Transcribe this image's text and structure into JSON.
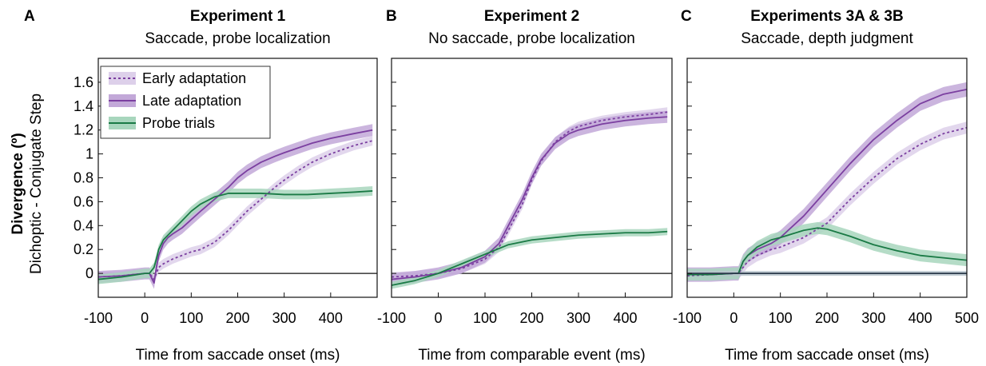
{
  "figure": {
    "ylabel_bold": "Divergence (º)",
    "ylabel": "Dichoptic - Conjugate Step"
  },
  "legend": {
    "items": [
      {
        "label": "Early adaptation",
        "color": "#7b3fa0",
        "style": "dotted",
        "band": "#ddd0ea"
      },
      {
        "label": "Late adaptation",
        "color": "#7b3fa0",
        "style": "solid",
        "band": "#c2a8d8"
      },
      {
        "label": "Probe trials",
        "color": "#1a7a45",
        "style": "solid",
        "band": "#a8d6bd"
      }
    ],
    "placement": "top-left of panel A"
  },
  "chart_data": [
    {
      "type": "line",
      "letter": "A",
      "title": "Experiment 1",
      "subtitle": "Saccade, probe localization",
      "xlabel": "Time from saccade onset (ms)",
      "xlim": [
        -100,
        500
      ],
      "ylim": [
        -0.2,
        1.8
      ],
      "xticks": [
        "-100",
        "0",
        "100",
        "200",
        "300",
        "400"
      ],
      "yticks": [
        "0",
        "0.2",
        "0.4",
        "0.6",
        "0.8",
        "1",
        "1.2",
        "1.4",
        "1.6"
      ],
      "reference_line": 0,
      "series": [
        {
          "name": "Early adaptation",
          "color": "#7b3fa0",
          "dash": "3,3",
          "band": "#ddd0ea",
          "band_width": 0.04,
          "x": [
            -100,
            -50,
            0,
            10,
            20,
            25,
            30,
            40,
            50,
            60,
            80,
            100,
            120,
            150,
            180,
            200,
            220,
            250,
            280,
            300,
            330,
            360,
            400,
            450,
            490
          ],
          "y": [
            -0.03,
            -0.02,
            0.0,
            0.0,
            -0.05,
            0.0,
            0.05,
            0.08,
            0.1,
            0.12,
            0.15,
            0.18,
            0.2,
            0.26,
            0.36,
            0.44,
            0.52,
            0.62,
            0.72,
            0.78,
            0.86,
            0.93,
            1.0,
            1.07,
            1.11
          ]
        },
        {
          "name": "Late adaptation",
          "color": "#7b3fa0",
          "dash": "",
          "band": "#c2a8d8",
          "band_width": 0.05,
          "x": [
            -100,
            -50,
            0,
            10,
            20,
            25,
            30,
            40,
            50,
            60,
            80,
            100,
            120,
            150,
            180,
            200,
            220,
            250,
            280,
            300,
            330,
            360,
            400,
            450,
            490
          ],
          "y": [
            -0.03,
            -0.02,
            0.0,
            0.0,
            -0.08,
            0.05,
            0.15,
            0.25,
            0.3,
            0.33,
            0.38,
            0.45,
            0.52,
            0.62,
            0.72,
            0.8,
            0.86,
            0.93,
            0.98,
            1.01,
            1.05,
            1.09,
            1.13,
            1.17,
            1.2
          ]
        },
        {
          "name": "Probe trials",
          "color": "#1a7a45",
          "dash": "",
          "band": "#a8d6bd",
          "band_width": 0.04,
          "x": [
            -100,
            -50,
            0,
            10,
            20,
            25,
            30,
            40,
            50,
            60,
            80,
            100,
            120,
            150,
            180,
            200,
            250,
            300,
            350,
            400,
            450,
            490
          ],
          "y": [
            -0.05,
            -0.03,
            0.0,
            0.0,
            0.05,
            0.12,
            0.2,
            0.28,
            0.32,
            0.36,
            0.44,
            0.52,
            0.58,
            0.64,
            0.67,
            0.67,
            0.67,
            0.66,
            0.66,
            0.67,
            0.68,
            0.69
          ]
        }
      ]
    },
    {
      "type": "line",
      "letter": "B",
      "title": "Experiment 2",
      "subtitle": "No saccade, probe localization",
      "xlabel": "Time from comparable event (ms)",
      "xlim": [
        -100,
        500
      ],
      "ylim": [
        -0.2,
        1.8
      ],
      "xticks": [
        "-100",
        "0",
        "100",
        "200",
        "300",
        "400"
      ],
      "yticks": [],
      "reference_line": 0,
      "series": [
        {
          "name": "Early adaptation",
          "color": "#7b3fa0",
          "dash": "3,3",
          "band": "#ddd0ea",
          "band_width": 0.04,
          "x": [
            -100,
            -50,
            0,
            50,
            100,
            130,
            150,
            180,
            200,
            220,
            250,
            280,
            300,
            350,
            400,
            450,
            490
          ],
          "y": [
            -0.03,
            -0.02,
            0.0,
            0.04,
            0.12,
            0.22,
            0.36,
            0.58,
            0.78,
            0.94,
            1.1,
            1.19,
            1.23,
            1.28,
            1.31,
            1.33,
            1.35
          ]
        },
        {
          "name": "Late adaptation",
          "color": "#7b3fa0",
          "dash": "",
          "band": "#c2a8d8",
          "band_width": 0.05,
          "x": [
            -100,
            -50,
            0,
            50,
            100,
            130,
            150,
            180,
            200,
            220,
            250,
            280,
            300,
            350,
            400,
            450,
            490
          ],
          "y": [
            -0.05,
            -0.03,
            0.0,
            0.05,
            0.14,
            0.25,
            0.4,
            0.62,
            0.8,
            0.95,
            1.09,
            1.17,
            1.2,
            1.25,
            1.28,
            1.3,
            1.31
          ]
        },
        {
          "name": "Probe trials",
          "color": "#1a7a45",
          "dash": "",
          "band": "#a8d6bd",
          "band_width": 0.03,
          "x": [
            -100,
            -50,
            0,
            50,
            100,
            150,
            200,
            250,
            300,
            350,
            400,
            450,
            490
          ],
          "y": [
            -0.1,
            -0.06,
            0.0,
            0.08,
            0.16,
            0.24,
            0.28,
            0.3,
            0.32,
            0.33,
            0.34,
            0.34,
            0.35
          ]
        }
      ]
    },
    {
      "type": "line",
      "letter": "C",
      "title": "Experiments 3A & 3B",
      "subtitle": "Saccade, depth judgment",
      "xlabel": "Time from saccade onset (ms)",
      "xlim": [
        -100,
        500
      ],
      "ylim": [
        -0.2,
        1.8
      ],
      "xticks": [
        "-100",
        "0",
        "100",
        "200",
        "300",
        "400",
        "500"
      ],
      "yticks": [],
      "reference_line": 0,
      "series": [
        {
          "name": "Early adaptation",
          "color": "#7b3fa0",
          "dash": "3,3",
          "band": "#ddd0ea",
          "band_width": 0.05,
          "x": [
            -100,
            -50,
            0,
            10,
            20,
            30,
            50,
            80,
            100,
            150,
            200,
            250,
            300,
            350,
            400,
            450,
            500
          ],
          "y": [
            -0.02,
            -0.01,
            0.0,
            0.0,
            0.05,
            0.1,
            0.15,
            0.2,
            0.22,
            0.3,
            0.42,
            0.62,
            0.8,
            0.96,
            1.08,
            1.17,
            1.22
          ]
        },
        {
          "name": "Late adaptation",
          "color": "#7b3fa0",
          "dash": "",
          "band": "#c2a8d8",
          "band_width": 0.06,
          "x": [
            -100,
            -50,
            0,
            10,
            20,
            30,
            50,
            80,
            100,
            150,
            200,
            250,
            300,
            350,
            400,
            450,
            500
          ],
          "y": [
            -0.01,
            -0.01,
            0.0,
            0.0,
            0.1,
            0.15,
            0.2,
            0.25,
            0.3,
            0.48,
            0.7,
            0.92,
            1.12,
            1.28,
            1.42,
            1.5,
            1.54
          ]
        },
        {
          "name": "Probe trials",
          "color": "#1a7a45",
          "dash": "",
          "band": "#a8d6bd",
          "band_width": 0.05,
          "x": [
            -100,
            -50,
            0,
            10,
            20,
            30,
            50,
            80,
            100,
            150,
            180,
            200,
            250,
            300,
            350,
            400,
            450,
            500
          ],
          "y": [
            -0.01,
            -0.01,
            0.0,
            0.0,
            0.1,
            0.15,
            0.22,
            0.28,
            0.3,
            0.36,
            0.38,
            0.37,
            0.31,
            0.24,
            0.19,
            0.15,
            0.13,
            0.11
          ]
        },
        {
          "name": "Conjugate step",
          "color": "#2b3a4a",
          "dash": "",
          "band": "#b8c4cc",
          "band_width": 0.02,
          "x": [
            -100,
            0,
            500
          ],
          "y": [
            0.0,
            0.0,
            0.0
          ]
        }
      ]
    }
  ]
}
